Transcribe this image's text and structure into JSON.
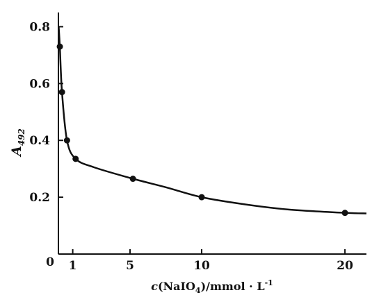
{
  "chart_data": {
    "type": "line",
    "title": "",
    "xlabel": "c(NaIO4)/mmol · L⁻¹",
    "xlabel_parts": {
      "italic": "c",
      "open": "(NaIO",
      "sub": "4",
      "close": ")/mmol · L",
      "sup": "-1"
    },
    "ylabel": "A492",
    "ylabel_parts": {
      "main": "A",
      "sub": "492"
    },
    "xlim": [
      0,
      21.5
    ],
    "ylim": [
      0,
      0.85
    ],
    "x_ticks": [
      1,
      5,
      10,
      20
    ],
    "x_tick_labels": [
      "1",
      "5",
      "10",
      "20"
    ],
    "y_ticks": [
      0,
      0.2,
      0.4,
      0.6,
      0.8
    ],
    "y_tick_labels": [
      "0",
      "0.2",
      "0.4",
      "0.6",
      "0.8"
    ],
    "origin_label": "0",
    "grid": false,
    "series": [
      {
        "points": [
          {
            "x": 0.1,
            "y": 0.73
          },
          {
            "x": 0.25,
            "y": 0.57
          },
          {
            "x": 0.6,
            "y": 0.4
          },
          {
            "x": 1.2,
            "y": 0.335
          },
          {
            "x": 5.2,
            "y": 0.265
          },
          {
            "x": 10.0,
            "y": 0.2
          },
          {
            "x": 20.0,
            "y": 0.145
          }
        ],
        "curve": [
          [
            0.02,
            0.8
          ],
          [
            0.1,
            0.73
          ],
          [
            0.25,
            0.57
          ],
          [
            0.6,
            0.4
          ],
          [
            1.2,
            0.335
          ],
          [
            2.5,
            0.305
          ],
          [
            5.2,
            0.265
          ],
          [
            7.5,
            0.235
          ],
          [
            10.0,
            0.2
          ],
          [
            13,
            0.175
          ],
          [
            16,
            0.157
          ],
          [
            20.0,
            0.145
          ],
          [
            21.5,
            0.143
          ]
        ]
      }
    ]
  }
}
